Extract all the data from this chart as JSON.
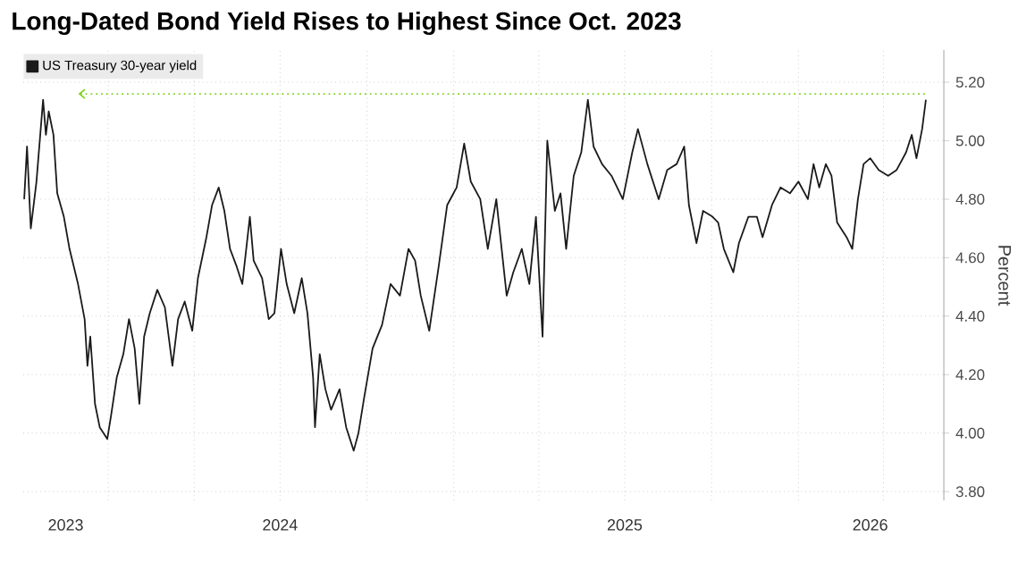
{
  "chart_data": {
    "type": "line",
    "title": "Long-Dated Bond Yield Rises to Highest Since Oct. 2023",
    "ylabel": "Percent",
    "x": [
      "2023-10-04",
      "2023-10-07",
      "2023-10-11",
      "2023-10-17",
      "2023-10-24",
      "2023-10-27",
      "2023-10-30",
      "2023-11-04",
      "2023-11-08",
      "2023-11-15",
      "2023-11-21",
      "2023-11-30",
      "2023-12-07",
      "2023-12-10",
      "2023-12-13",
      "2023-12-18",
      "2023-12-23",
      "2023-12-31",
      "2024-01-04",
      "2024-01-10",
      "2024-01-17",
      "2024-01-23",
      "2024-01-29",
      "2024-02-03",
      "2024-02-08",
      "2024-02-14",
      "2024-02-22",
      "2024-03-01",
      "2024-03-09",
      "2024-03-15",
      "2024-03-22",
      "2024-03-30",
      "2024-04-05",
      "2024-04-14",
      "2024-04-20",
      "2024-04-27",
      "2024-05-03",
      "2024-05-09",
      "2024-05-16",
      "2024-05-22",
      "2024-05-30",
      "2024-06-03",
      "2024-06-12",
      "2024-06-19",
      "2024-06-25",
      "2024-07-02",
      "2024-07-08",
      "2024-07-16",
      "2024-07-24",
      "2024-07-30",
      "2024-08-05",
      "2024-08-07",
      "2024-08-12",
      "2024-08-18",
      "2024-08-24",
      "2024-09-02",
      "2024-09-09",
      "2024-09-17",
      "2024-09-22",
      "2024-09-28",
      "2024-10-07",
      "2024-10-17",
      "2024-10-26",
      "2024-11-05",
      "2024-11-14",
      "2024-11-21",
      "2024-11-27",
      "2024-12-06",
      "2024-12-16",
      "2024-12-25",
      "2025-01-04",
      "2025-01-12",
      "2025-01-19",
      "2025-01-29",
      "2025-02-06",
      "2025-02-15",
      "2025-02-26",
      "2025-03-05",
      "2025-03-14",
      "2025-03-22",
      "2025-03-29",
      "2025-04-05",
      "2025-04-10",
      "2025-04-18",
      "2025-04-24",
      "2025-04-30",
      "2025-05-08",
      "2025-05-16",
      "2025-05-23",
      "2025-05-29",
      "2025-06-07",
      "2025-06-17",
      "2025-06-29",
      "2025-07-09",
      "2025-07-15",
      "2025-07-25",
      "2025-08-06",
      "2025-08-15",
      "2025-08-25",
      "2025-09-02",
      "2025-09-07",
      "2025-09-15",
      "2025-09-22",
      "2025-10-02",
      "2025-10-08",
      "2025-10-14",
      "2025-10-24",
      "2025-10-30",
      "2025-11-09",
      "2025-11-18",
      "2025-11-24",
      "2025-12-04",
      "2025-12-13",
      "2025-12-23",
      "2026-01-01",
      "2026-01-11",
      "2026-01-17",
      "2026-01-23",
      "2026-01-30",
      "2026-02-05",
      "2026-02-11",
      "2026-02-21",
      "2026-02-27",
      "2026-03-05",
      "2026-03-11",
      "2026-03-18",
      "2026-03-27",
      "2026-04-06",
      "2026-04-15",
      "2026-04-25",
      "2026-05-01",
      "2026-05-06",
      "2026-05-12",
      "2026-05-16"
    ],
    "series": [
      {
        "name": "US Treasury 30-year yield",
        "color": "#1a1a1a",
        "values": [
          4.8,
          4.98,
          4.7,
          4.86,
          5.14,
          5.02,
          5.1,
          5.02,
          4.82,
          4.74,
          4.63,
          4.51,
          4.39,
          4.23,
          4.33,
          4.1,
          4.02,
          3.98,
          4.06,
          4.19,
          4.27,
          4.39,
          4.29,
          4.1,
          4.33,
          4.41,
          4.49,
          4.43,
          4.23,
          4.39,
          4.45,
          4.35,
          4.53,
          4.67,
          4.78,
          4.84,
          4.76,
          4.63,
          4.57,
          4.51,
          4.74,
          4.59,
          4.53,
          4.39,
          4.41,
          4.63,
          4.51,
          4.41,
          4.53,
          4.41,
          4.19,
          4.02,
          4.27,
          4.15,
          4.08,
          4.15,
          4.02,
          3.94,
          4.0,
          4.12,
          4.29,
          4.37,
          4.51,
          4.47,
          4.63,
          4.59,
          4.47,
          4.35,
          4.57,
          4.78,
          4.84,
          4.99,
          4.86,
          4.8,
          4.63,
          4.8,
          4.47,
          4.55,
          4.63,
          4.51,
          4.74,
          4.33,
          5.0,
          4.76,
          4.82,
          4.63,
          4.88,
          4.96,
          5.14,
          4.98,
          4.92,
          4.88,
          4.8,
          4.96,
          5.04,
          4.92,
          4.8,
          4.9,
          4.92,
          4.98,
          4.78,
          4.65,
          4.76,
          4.74,
          4.72,
          4.63,
          4.55,
          4.65,
          4.74,
          4.74,
          4.67,
          4.78,
          4.84,
          4.82,
          4.86,
          4.8,
          4.92,
          4.84,
          4.92,
          4.88,
          4.72,
          4.67,
          4.63,
          4.8,
          4.92,
          4.94,
          4.9,
          4.88,
          4.9,
          4.96,
          5.02,
          4.94,
          5.04,
          5.14
        ]
      }
    ],
    "xlim": [
      "2023-10-03",
      "2026-06-04"
    ],
    "xticks": [
      {
        "value": "2023-11-17",
        "label": "2023"
      },
      {
        "value": "2024-01-01",
        "label": null
      },
      {
        "value": "2024-04-01",
        "label": null
      },
      {
        "value": "2024-07-01",
        "label": "2024"
      },
      {
        "value": "2024-07-01",
        "label": null
      },
      {
        "value": "2024-10-01",
        "label": null
      },
      {
        "value": "2025-01-01",
        "label": null
      },
      {
        "value": "2025-04-01",
        "label": null
      },
      {
        "value": "2025-07-01",
        "label": "2025"
      },
      {
        "value": "2025-07-01",
        "label": null
      },
      {
        "value": "2025-10-01",
        "label": null
      },
      {
        "value": "2026-01-01",
        "label": null
      },
      {
        "value": "2026-03-18",
        "label": "2026"
      },
      {
        "value": "2026-04-01",
        "label": null
      }
    ],
    "ylim": [
      3.77,
      5.31
    ],
    "yticks": [
      {
        "value": 3.8,
        "label": "3.80"
      },
      {
        "value": 4.0,
        "label": "4.00"
      },
      {
        "value": 4.2,
        "label": "4.20"
      },
      {
        "value": 4.4,
        "label": "4.40"
      },
      {
        "value": 4.6,
        "label": "4.60"
      },
      {
        "value": 4.8,
        "label": "4.80"
      },
      {
        "value": 5.0,
        "label": "5.00"
      },
      {
        "value": 5.2,
        "label": "5.20"
      }
    ],
    "ref_lines": [
      {
        "axis": "y",
        "value": 5.16,
        "color": "#7ed321",
        "line_style": "dotted"
      }
    ],
    "grid": true,
    "legend": "top left",
    "line_style": "solid"
  }
}
